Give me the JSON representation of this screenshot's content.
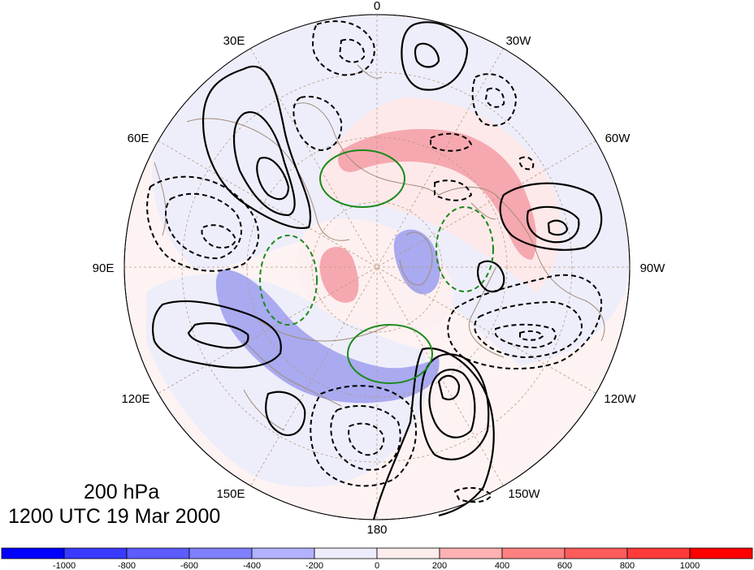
{
  "map": {
    "projection": "north polar stereographic",
    "title_level": "200 hPa",
    "title_time": "1200 UTC 19 Mar 2000",
    "longitude_labels": [
      "0",
      "30W",
      "60W",
      "90W",
      "120W",
      "150W",
      "180",
      "150E",
      "120E",
      "90E",
      "60E",
      "30E"
    ],
    "colors": {
      "coastline": "#a08a78",
      "graticule": "#b89a80",
      "positive_contour": "#000000",
      "negative_contour": "#000000",
      "green_contour": "#1a8a1a",
      "shade_positive": "#f4a0a8",
      "shade_negative": "#9fa0f0",
      "weak_positive": "#fdeeee",
      "weak_negative": "#eeeefc"
    }
  },
  "colorbar": {
    "tick_labels": [
      "-1000",
      "-800",
      "-600",
      "-400",
      "-200",
      "0",
      "200",
      "400",
      "600",
      "800",
      "1000"
    ],
    "bin_colors": [
      "#0000ff",
      "#3a3aff",
      "#5c5cff",
      "#8080ff",
      "#b2b2ff",
      "#ececfd",
      "#fdecec",
      "#ffb2b2",
      "#ff8080",
      "#ff5c5c",
      "#ff3a3a",
      "#ff0000"
    ]
  }
}
